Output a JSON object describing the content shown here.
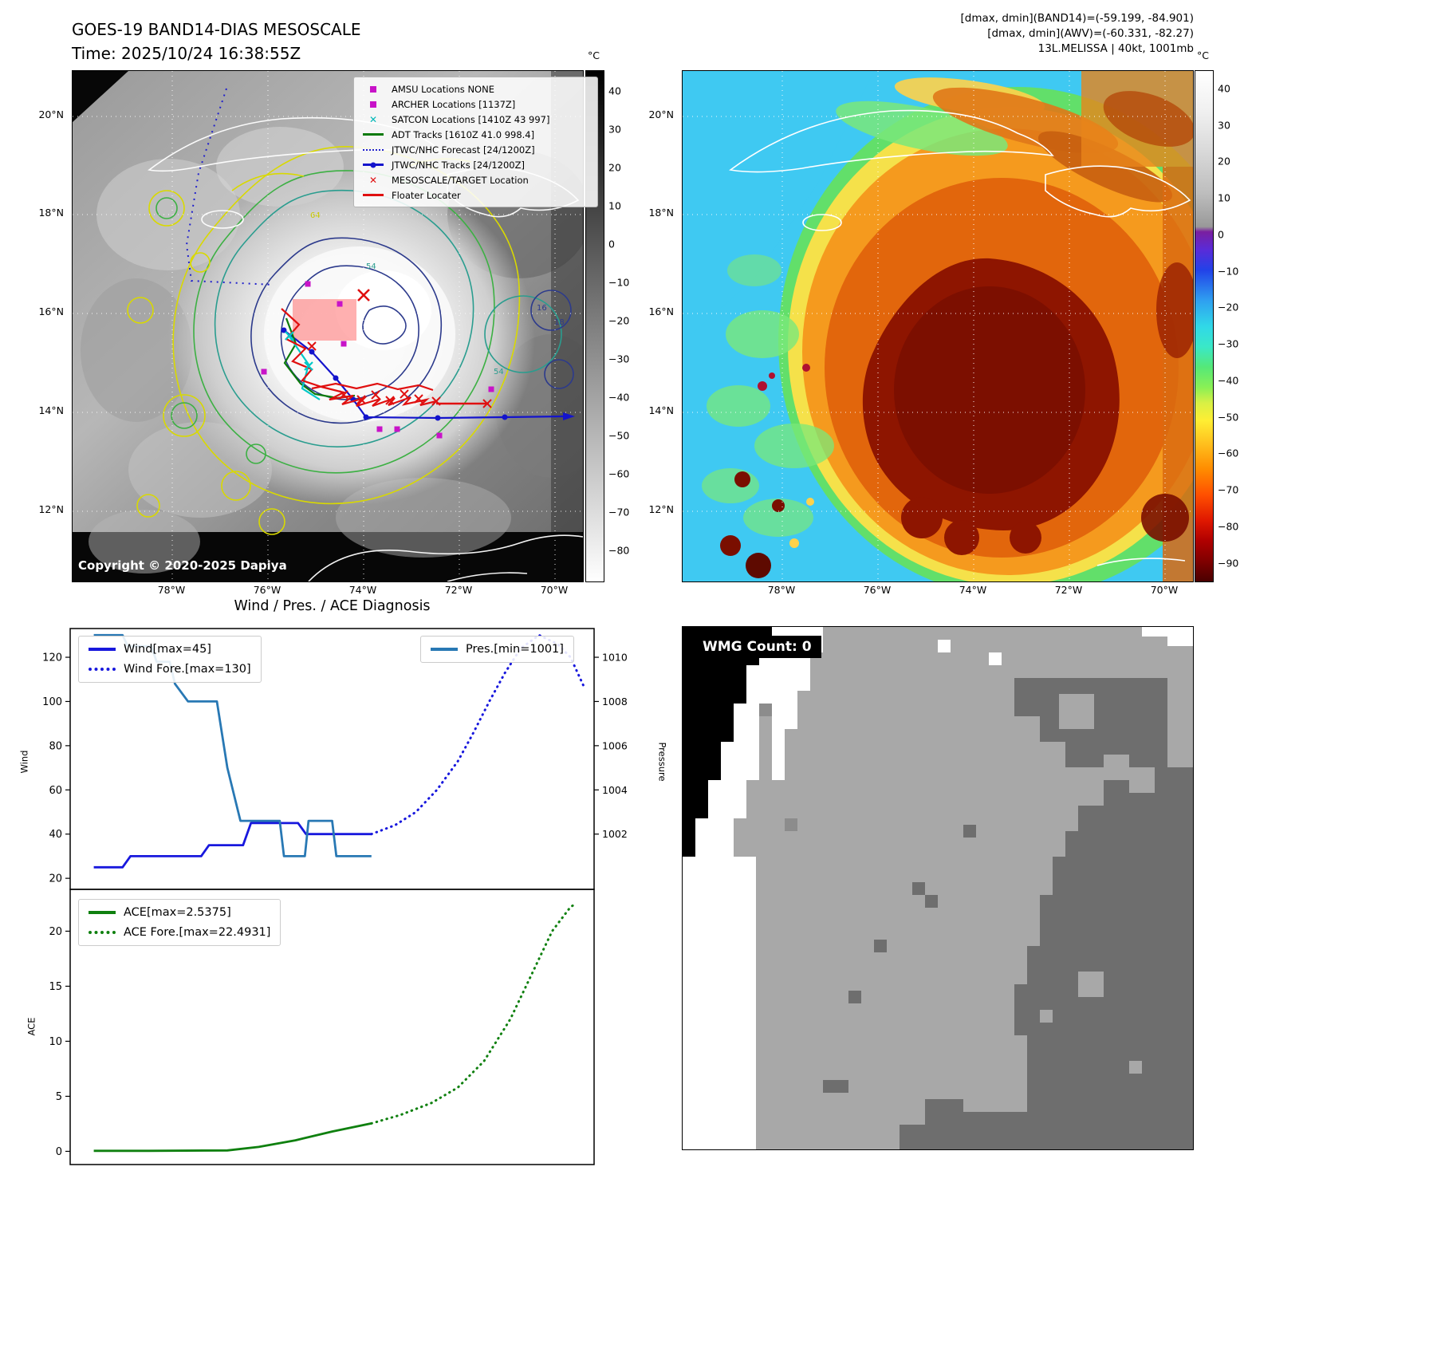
{
  "panel_band14": {
    "title_line1": "GOES-19 BAND14-DIAS MESOSCALE",
    "title_line2": "Time: 2025/10/24 16:38:55Z",
    "copyright": "Copyright © 2020-2025 Dapiya",
    "colorbar_unit": "°C",
    "colorbar_ticks": [
      40,
      30,
      20,
      10,
      0,
      -10,
      -20,
      -30,
      -40,
      -50,
      -60,
      -70,
      -80
    ],
    "lat_ticks": [
      "20°N",
      "18°N",
      "16°N",
      "14°N",
      "12°N"
    ],
    "lon_ticks": [
      "78°W",
      "76°W",
      "74°W",
      "72°W",
      "70°W"
    ],
    "contour_labels": [
      "64",
      "54",
      "54",
      "16",
      "18"
    ],
    "legend": [
      {
        "label": "AMSU Locations NONE",
        "marker": "square",
        "color": "#c813c8"
      },
      {
        "label": "ARCHER Locations [1137Z]",
        "marker": "square",
        "color": "#c813c8"
      },
      {
        "label": "SATCON Locations [1410Z 43 997]",
        "marker": "x",
        "color": "#00b8b8"
      },
      {
        "label": "ADT Tracks [1610Z 41.0 998.4]",
        "marker": "line",
        "color": "#0a7a0a"
      },
      {
        "label": "JTWC/NHC Forecast [24/1200Z]",
        "marker": "dotted",
        "color": "#2020cc"
      },
      {
        "label": "JTWC/NHC Tracks [24/1200Z]",
        "marker": "line-dot",
        "color": "#1414cc"
      },
      {
        "label": "MESOSCALE/TARGET Location",
        "marker": "x",
        "color": "#e01010"
      },
      {
        "label": "Floater Locater",
        "marker": "line",
        "color": "#e01010"
      }
    ]
  },
  "panel_awv": {
    "header_line1": "[dmax, dmin](BAND14)=(-59.199, -84.901)",
    "header_line2": "[dmax, dmin](AWV)=(-60.331, -82.27)",
    "header_line3": "13L.MELISSA | 40kt, 1001mb",
    "colorbar_unit": "°C",
    "colorbar_ticks": [
      40,
      30,
      20,
      10,
      0,
      -10,
      -20,
      -30,
      -40,
      -50,
      -60,
      -70,
      -80,
      -90
    ],
    "lat_ticks": [
      "20°N",
      "18°N",
      "16°N",
      "14°N",
      "12°N"
    ],
    "lon_ticks": [
      "78°W",
      "76°W",
      "74°W",
      "72°W",
      "70°W"
    ]
  },
  "diagnosis": {
    "title": "Wind / Pres. / ACE Diagnosis"
  },
  "panel_wmg": {
    "label": "WMG Count: 0"
  },
  "chart_data": [
    {
      "type": "line",
      "subplot": "wind_pressure",
      "ylabel_left": "Wind",
      "ylabel_right": "Pressure",
      "yticks_left": [
        20,
        40,
        60,
        80,
        100,
        120
      ],
      "yticks_right": [
        1002,
        1004,
        1006,
        1008,
        1010
      ],
      "ylim_left": [
        15,
        133
      ],
      "grid": false,
      "series": [
        {
          "name": "Wind[max=45]",
          "style": "solid",
          "color": "#1818dd",
          "axis": "wind",
          "x": [
            0.045,
            0.1,
            0.115,
            0.25,
            0.265,
            0.33,
            0.345,
            0.435,
            0.45,
            0.575
          ],
          "y": [
            25,
            25,
            30,
            30,
            35,
            35,
            45,
            45,
            40,
            40
          ]
        },
        {
          "name": "Wind Fore.[max=130]",
          "style": "dotted",
          "color": "#1818dd",
          "axis": "wind",
          "x": [
            0.575,
            0.62,
            0.66,
            0.7,
            0.74,
            0.77,
            0.8,
            0.83,
            0.86,
            0.895,
            0.93,
            0.955,
            0.98
          ],
          "y": [
            40,
            44,
            50,
            60,
            73,
            86,
            100,
            113,
            124,
            130,
            126,
            120,
            107
          ]
        },
        {
          "name": "Pres.[min=1001]",
          "style": "solid",
          "color": "#2878b4",
          "axis": "pressure",
          "x": [
            0.045,
            0.1,
            0.11,
            0.155,
            0.165,
            0.19,
            0.2,
            0.225,
            0.28,
            0.3,
            0.325,
            0.35,
            0.4,
            0.408,
            0.448,
            0.455,
            0.5,
            0.508,
            0.575
          ],
          "y": [
            1011,
            1011,
            1010.5,
            1010.5,
            1009.8,
            1009.8,
            1008.8,
            1008,
            1008,
            1005,
            1002.6,
            1002.6,
            1002.6,
            1001,
            1001,
            1002.6,
            1002.6,
            1001,
            1001
          ]
        }
      ]
    },
    {
      "type": "line",
      "subplot": "ace",
      "ylabel_left": "ACE",
      "yticks_left": [
        0,
        5,
        10,
        15,
        20
      ],
      "ylim_left": [
        -1.2,
        23.8
      ],
      "grid": false,
      "series": [
        {
          "name": "ACE[max=2.5375]",
          "style": "solid",
          "color": "#0f800f",
          "axis": "ace",
          "x": [
            0.045,
            0.15,
            0.3,
            0.36,
            0.43,
            0.5,
            0.575
          ],
          "y": [
            0.05,
            0.05,
            0.08,
            0.4,
            1.0,
            1.8,
            2.5375
          ]
        },
        {
          "name": "ACE Fore.[max=22.4931]",
          "style": "dotted",
          "color": "#0f800f",
          "axis": "ace",
          "x": [
            0.575,
            0.63,
            0.69,
            0.74,
            0.79,
            0.84,
            0.88,
            0.92,
            0.955,
            0.965
          ],
          "y": [
            2.5375,
            3.3,
            4.4,
            5.8,
            8.2,
            12.0,
            16.0,
            20.0,
            22.2,
            22.4931
          ]
        }
      ]
    }
  ]
}
